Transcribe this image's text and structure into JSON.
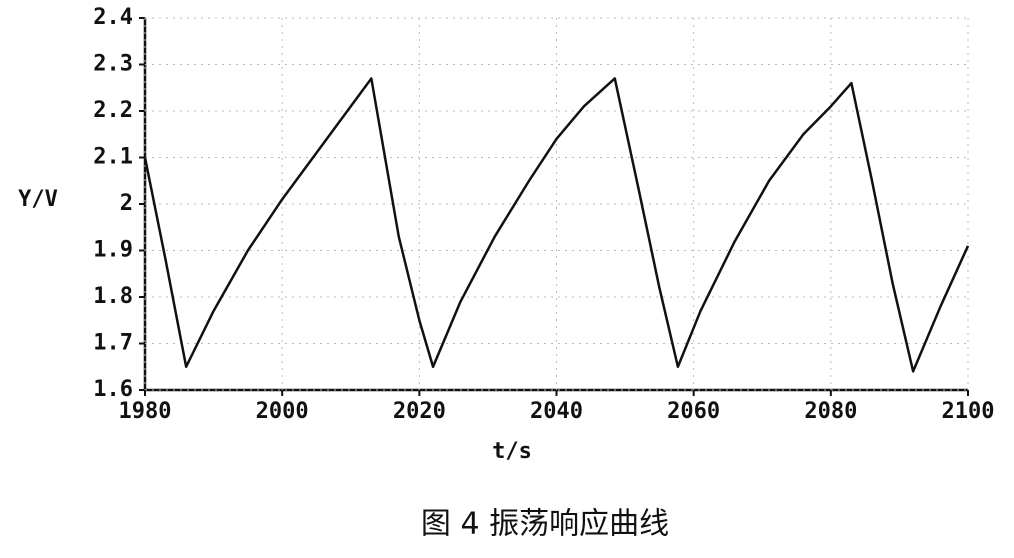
{
  "chart_data": {
    "type": "line",
    "caption": "图 4 振荡响应曲线",
    "xlabel": "t/s",
    "ylabel": "Y/V",
    "xlim": [
      1980,
      2100
    ],
    "xticks": [
      1980,
      2000,
      2020,
      2040,
      2060,
      2080,
      2100
    ],
    "ylim": [
      1.6,
      2.4
    ],
    "yticks": [
      1.6,
      1.7,
      1.8,
      1.9,
      2,
      2.1,
      2.2,
      2.3,
      2.4
    ],
    "grid": true,
    "series": [
      {
        "color": "#111111",
        "x": [
          1980,
          1983,
          1986,
          1990,
          1995,
          2000,
          2005,
          2010,
          2013,
          2017,
          2020,
          2022,
          2026,
          2031,
          2036,
          2040,
          2044,
          2048.5,
          2052,
          2055,
          2057.7,
          2061,
          2066,
          2071,
          2076,
          2080,
          2083,
          2086,
          2089,
          2092,
          2096,
          2100
        ],
        "values": [
          2.1,
          1.88,
          1.65,
          1.77,
          1.9,
          2.01,
          2.11,
          2.21,
          2.27,
          1.93,
          1.75,
          1.65,
          1.79,
          1.93,
          2.05,
          2.14,
          2.21,
          2.27,
          2.03,
          1.82,
          1.65,
          1.77,
          1.92,
          2.05,
          2.15,
          2.21,
          2.26,
          2.05,
          1.83,
          1.64,
          1.78,
          1.91
        ]
      }
    ]
  }
}
